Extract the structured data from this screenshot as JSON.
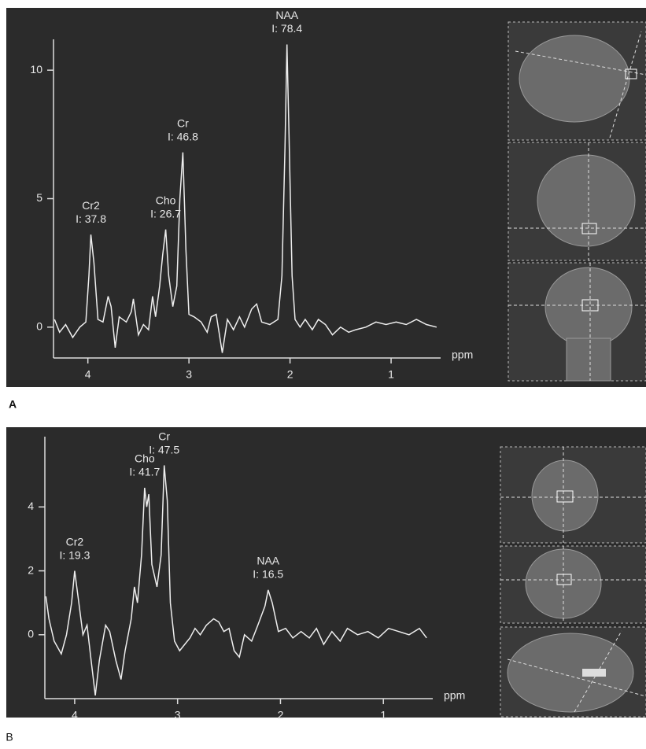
{
  "chart_data": [
    {
      "type": "line",
      "panel_label": "A",
      "x_label": "ppm",
      "xlim": [
        4.34,
        0.51
      ],
      "ylim": [
        -1.2,
        11.2
      ],
      "xticks": [
        4,
        3,
        2,
        1
      ],
      "yticks": [
        0,
        5,
        10
      ],
      "x": [
        4.33,
        4.28,
        4.22,
        4.15,
        4.08,
        4.02,
        3.99,
        3.97,
        3.94,
        3.9,
        3.85,
        3.8,
        3.77,
        3.73,
        3.69,
        3.62,
        3.57,
        3.55,
        3.5,
        3.45,
        3.4,
        3.36,
        3.33,
        3.29,
        3.26,
        3.23,
        3.2,
        3.16,
        3.12,
        3.09,
        3.06,
        3.03,
        3.0,
        2.95,
        2.88,
        2.82,
        2.78,
        2.73,
        2.67,
        2.62,
        2.56,
        2.5,
        2.45,
        2.38,
        2.33,
        2.28,
        2.2,
        2.12,
        2.08,
        2.05,
        2.03,
        2.01,
        1.98,
        1.95,
        1.9,
        1.85,
        1.78,
        1.72,
        1.65,
        1.58,
        1.5,
        1.42,
        1.35,
        1.25,
        1.15,
        1.05,
        0.95,
        0.85,
        0.75,
        0.65,
        0.55
      ],
      "series": [
        {
          "color": "#eeeeee",
          "values": [
            0.3,
            -0.2,
            0.1,
            -0.4,
            0.0,
            0.2,
            2.0,
            3.6,
            2.5,
            0.3,
            0.2,
            1.2,
            0.8,
            -0.8,
            0.4,
            0.2,
            0.6,
            1.1,
            -0.3,
            0.1,
            -0.1,
            1.2,
            0.4,
            1.6,
            2.8,
            3.8,
            2.0,
            0.8,
            1.6,
            5.0,
            6.8,
            3.0,
            0.5,
            0.4,
            0.2,
            -0.2,
            0.4,
            0.5,
            -1.0,
            0.3,
            -0.1,
            0.4,
            0.0,
            0.7,
            0.9,
            0.2,
            0.1,
            0.3,
            2.0,
            7.0,
            11.0,
            7.5,
            2.0,
            0.3,
            0.0,
            0.3,
            -0.1,
            0.3,
            0.1,
            -0.3,
            0.0,
            -0.2,
            -0.1,
            0.0,
            0.2,
            0.1,
            0.2,
            0.1,
            0.3,
            0.1,
            0.0
          ]
        }
      ],
      "annotations": [
        {
          "x": 3.97,
          "text": "Cr2",
          "subtext": "I: 37.8"
        },
        {
          "x": 3.23,
          "text": "Cho",
          "subtext": "I: 26.7"
        },
        {
          "x": 3.06,
          "text": "Cr",
          "subtext": "I: 46.8"
        },
        {
          "x": 2.03,
          "text": "NAA",
          "subtext": "I: 78.4"
        }
      ]
    },
    {
      "type": "line",
      "panel_label": "B",
      "x_label": "ppm",
      "xlim": [
        4.29,
        0.52
      ],
      "ylim": [
        -2.0,
        6.2
      ],
      "xticks": [
        4,
        3,
        2,
        1
      ],
      "yticks": [
        0,
        2,
        4
      ],
      "x": [
        4.28,
        4.25,
        4.2,
        4.13,
        4.08,
        4.03,
        4.0,
        3.96,
        3.92,
        3.88,
        3.84,
        3.8,
        3.76,
        3.7,
        3.66,
        3.6,
        3.55,
        3.51,
        3.45,
        3.42,
        3.39,
        3.35,
        3.32,
        3.3,
        3.28,
        3.25,
        3.2,
        3.16,
        3.13,
        3.1,
        3.07,
        3.03,
        2.98,
        2.93,
        2.88,
        2.83,
        2.78,
        2.72,
        2.65,
        2.6,
        2.55,
        2.5,
        2.45,
        2.4,
        2.35,
        2.28,
        2.22,
        2.15,
        2.12,
        2.08,
        2.02,
        1.95,
        1.88,
        1.8,
        1.72,
        1.65,
        1.58,
        1.5,
        1.42,
        1.35,
        1.25,
        1.15,
        1.05,
        0.95,
        0.85,
        0.75,
        0.65,
        0.58
      ],
      "series": [
        {
          "color": "#eeeeee",
          "values": [
            1.2,
            0.5,
            -0.2,
            -0.6,
            0.0,
            1.0,
            2.0,
            1.0,
            0.0,
            0.3,
            -0.8,
            -1.9,
            -0.8,
            0.3,
            0.1,
            -0.8,
            -1.4,
            -0.5,
            0.5,
            1.5,
            1.0,
            2.5,
            4.6,
            4.0,
            4.4,
            2.2,
            1.5,
            2.5,
            5.3,
            4.2,
            1.0,
            -0.2,
            -0.5,
            -0.3,
            -0.1,
            0.2,
            0.0,
            0.3,
            0.5,
            0.4,
            0.1,
            0.2,
            -0.5,
            -0.7,
            0.0,
            -0.2,
            0.3,
            0.9,
            1.4,
            1.0,
            0.1,
            0.2,
            -0.1,
            0.1,
            -0.1,
            0.2,
            -0.3,
            0.1,
            -0.2,
            0.2,
            0.0,
            0.1,
            -0.1,
            0.2,
            0.1,
            0.0,
            0.2,
            -0.1
          ]
        }
      ],
      "annotations": [
        {
          "x": 4.0,
          "text": "Cr2",
          "subtext": "I: 19.3"
        },
        {
          "x": 3.32,
          "text": "Cho",
          "subtext": "I: 41.7"
        },
        {
          "x": 3.13,
          "text": "Cr",
          "subtext": "I: 47.5"
        },
        {
          "x": 2.12,
          "text": "NAA",
          "subtext": "I: 16.5"
        }
      ]
    }
  ]
}
